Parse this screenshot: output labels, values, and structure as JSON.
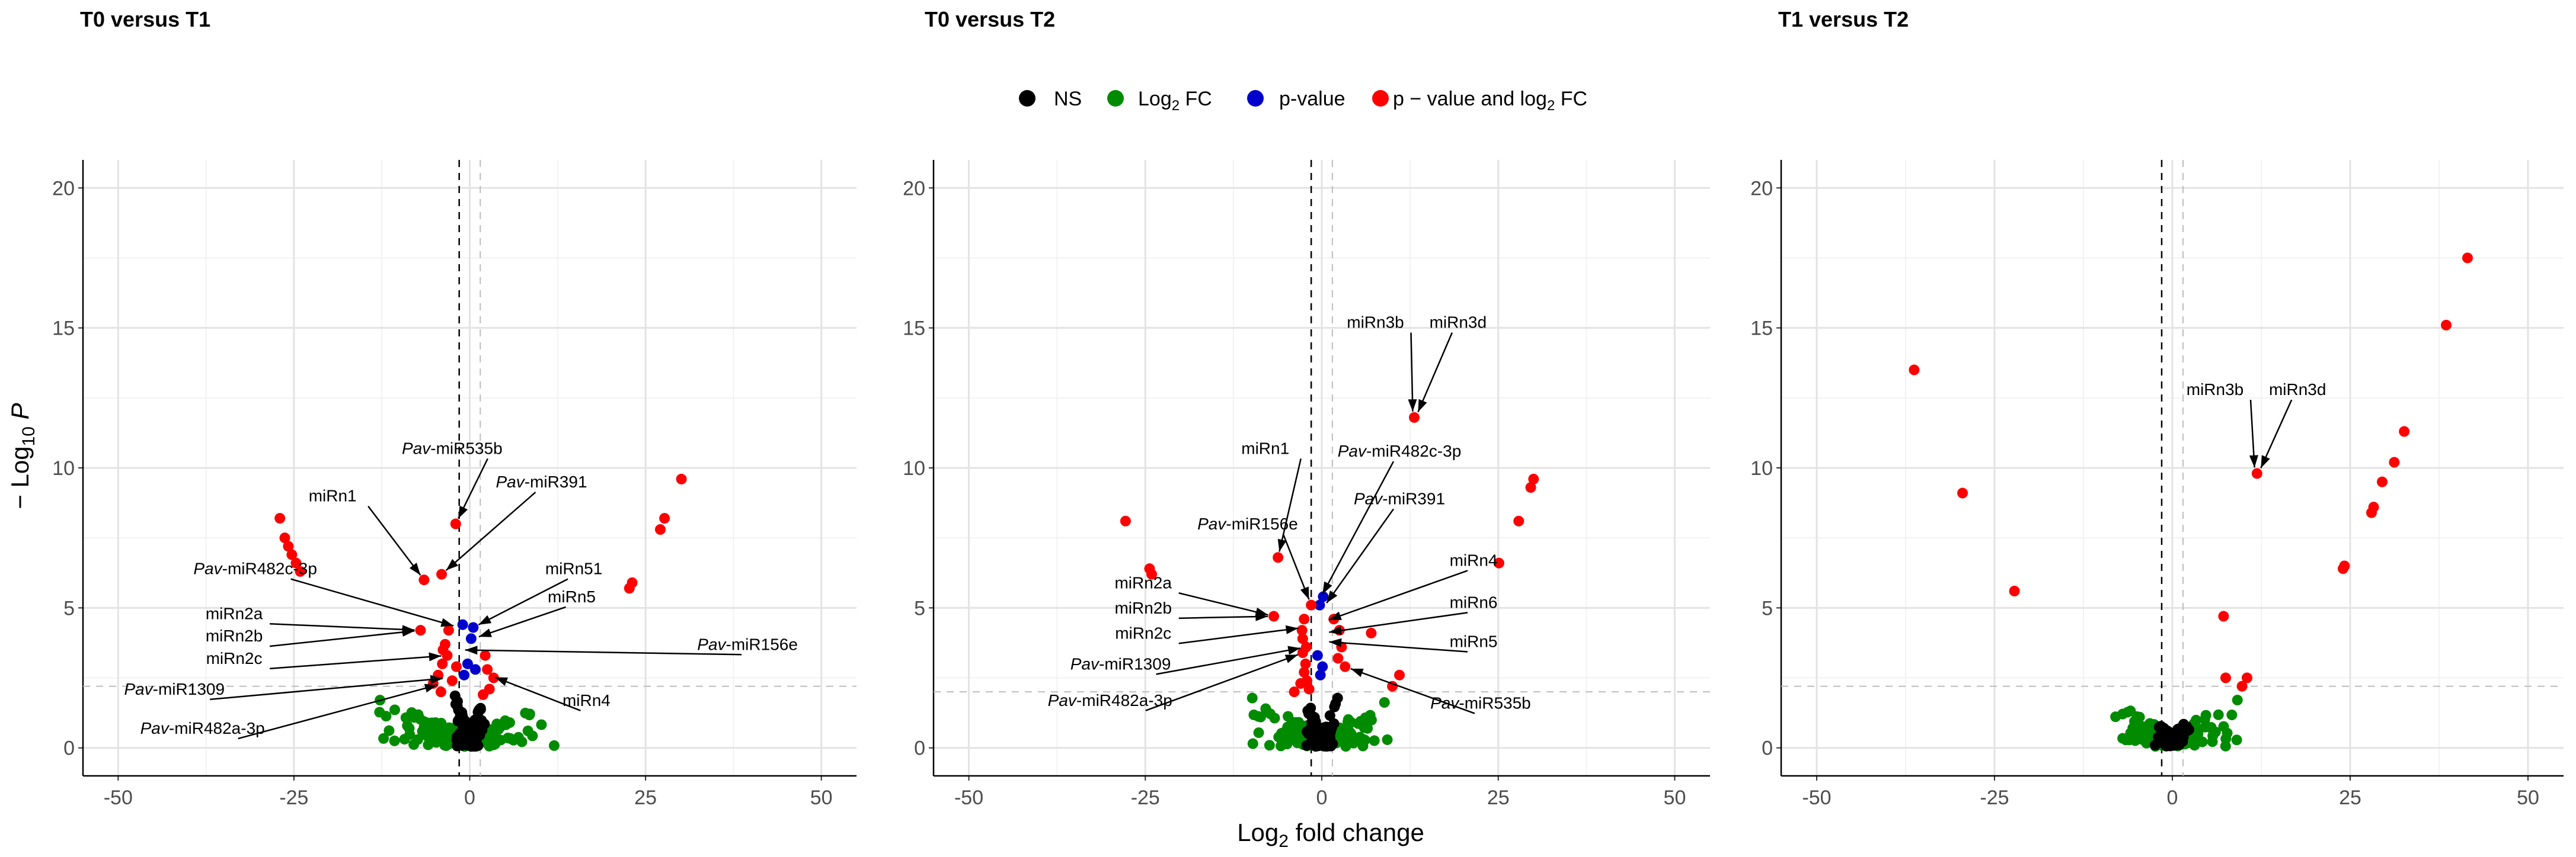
{
  "chart_data": [
    {
      "type": "scatter",
      "title": "T0 versus T1",
      "xlabel": "Log2 fold change",
      "ylabel": "-Log10 P",
      "xlim": [
        -55,
        55
      ],
      "ylim": [
        -1,
        21
      ],
      "xticks": [
        -50,
        -25,
        0,
        25,
        50
      ],
      "yticks": [
        0,
        5,
        10,
        15,
        20
      ],
      "fc_cutoff": [
        -1.5,
        1.5
      ],
      "p_cutoff": 2.2,
      "series": [
        {
          "name": "NS",
          "color": "#000000",
          "cloud": {
            "xSpread": 2.5,
            "yMax": 2.1,
            "n": 140,
            "seed": 11
          }
        },
        {
          "name": "Log2 FC",
          "color": "#008B00",
          "cloud": {
            "xSpread": 14,
            "yMax": 1.8,
            "n": 150,
            "seed": 12
          }
        },
        {
          "name": "p-value",
          "color": "#0000CD",
          "points": [
            [
              -1.0,
              4.4
            ],
            [
              0.5,
              4.3
            ],
            [
              0.2,
              3.9
            ],
            [
              -0.3,
              3.0
            ],
            [
              0.8,
              2.8
            ],
            [
              -0.8,
              2.6
            ]
          ]
        },
        {
          "name": "p - value and log2 FC",
          "color": "#FF0000",
          "points": [
            [
              -27,
              8.2
            ],
            [
              -26.3,
              7.5
            ],
            [
              -25.8,
              7.2
            ],
            [
              -25.3,
              6.9
            ],
            [
              -24.7,
              6.6
            ],
            [
              -24.1,
              6.3
            ],
            [
              30.1,
              9.6
            ],
            [
              27.7,
              8.2
            ],
            [
              27.1,
              7.8
            ],
            [
              23.1,
              5.9
            ],
            [
              22.7,
              5.7
            ],
            [
              -2,
              8.0
            ],
            [
              -4,
              6.2
            ],
            [
              -6.5,
              6.0
            ],
            [
              -7,
              4.2
            ],
            [
              -3,
              4.2
            ],
            [
              -3.5,
              3.7
            ],
            [
              -3.8,
              3.5
            ],
            [
              -3.2,
              3.3
            ],
            [
              -3.9,
              3.0
            ],
            [
              -4.5,
              2.6
            ],
            [
              -5.2,
              2.3
            ],
            [
              -4.1,
              2.0
            ],
            [
              2.2,
              3.3
            ],
            [
              2.5,
              2.8
            ],
            [
              3.4,
              2.5
            ],
            [
              2.8,
              2.1
            ],
            [
              1.9,
              1.9
            ],
            [
              -2.5,
              2.4
            ],
            [
              -1.9,
              2.9
            ]
          ]
        }
      ],
      "annotations": [
        {
          "prefix": "Pav",
          "text": "-miR535b",
          "x": -2.5,
          "y": 10.5,
          "px": -2.0,
          "py": 8.0
        },
        {
          "prefix": "Pav",
          "text": "-miR391",
          "x": 10.2,
          "y": 9.3,
          "px": -4.0,
          "py": 6.2
        },
        {
          "prefix": "",
          "text": "miRn1",
          "x": -19.5,
          "y": 8.8,
          "px": -6.5,
          "py": 6.0
        },
        {
          "prefix": "Pav",
          "text": "-miR482c-3p",
          "x": -30.5,
          "y": 6.2,
          "px": -1.5,
          "py": 4.3
        },
        {
          "prefix": "",
          "text": "miRn51",
          "x": 14.8,
          "y": 6.2,
          "px": 0.5,
          "py": 4.3
        },
        {
          "prefix": "",
          "text": "miRn5",
          "x": 14.5,
          "y": 5.2,
          "px": 0.5,
          "py": 3.9
        },
        {
          "prefix": "",
          "text": "miRn2a",
          "x": -33.5,
          "y": 4.6,
          "px": -7.0,
          "py": 4.2
        },
        {
          "prefix": "",
          "text": "miRn2b",
          "x": -33.5,
          "y": 3.8,
          "px": -7.0,
          "py": 4.2
        },
        {
          "prefix": "",
          "text": "miRn2c",
          "x": -33.5,
          "y": 3.0,
          "px": -3.2,
          "py": 3.3
        },
        {
          "prefix": "",
          "text": "miRn4",
          "x": 16.6,
          "y": 1.5,
          "px": 2.8,
          "py": 2.6
        },
        {
          "prefix": "Pav",
          "text": "-miR156e",
          "x": 39.5,
          "y": 3.5,
          "px": -1.5,
          "py": 3.5
        },
        {
          "prefix": "Pav",
          "text": "-miR1309",
          "x": -42,
          "y": 1.9,
          "px": -3.0,
          "py": 2.5
        },
        {
          "prefix": "Pav",
          "text": "-miR482a-3p",
          "x": -38,
          "y": 0.5,
          "px": -3.8,
          "py": 2.3
        }
      ]
    },
    {
      "type": "scatter",
      "title": "T0 versus T2",
      "xlabel": "Log2 fold change",
      "ylabel": "-Log10 P",
      "xlim": [
        -55,
        55
      ],
      "ylim": [
        -1,
        21
      ],
      "xticks": [
        -50,
        -25,
        0,
        25,
        50
      ],
      "yticks": [
        0,
        5,
        10,
        15,
        20
      ],
      "fc_cutoff": [
        -1.5,
        1.5
      ],
      "p_cutoff": 2.0,
      "series": [
        {
          "name": "NS",
          "color": "#000000",
          "cloud": {
            "xSpread": 2.5,
            "yMax": 1.9,
            "n": 140,
            "seed": 21
          }
        },
        {
          "name": "Log2 FC",
          "color": "#008B00",
          "cloud": {
            "xSpread": 11,
            "yMax": 1.9,
            "n": 150,
            "seed": 22
          }
        },
        {
          "name": "p-value",
          "color": "#0000CD",
          "points": [
            [
              0.2,
              5.4
            ],
            [
              -0.3,
              5.1
            ],
            [
              -0.6,
              3.3
            ],
            [
              0.1,
              2.9
            ],
            [
              -0.2,
              2.6
            ]
          ]
        },
        {
          "name": "p - value and log2 FC",
          "color": "#FF0000",
          "points": [
            [
              -27.8,
              8.1
            ],
            [
              -24.4,
              6.4
            ],
            [
              -24.1,
              6.2
            ],
            [
              13.1,
              11.8
            ],
            [
              30,
              9.6
            ],
            [
              29.6,
              9.3
            ],
            [
              27.9,
              8.1
            ],
            [
              25.1,
              6.6
            ],
            [
              -6.2,
              6.8
            ],
            [
              -1.5,
              5.1
            ],
            [
              -6.8,
              4.7
            ],
            [
              -2.5,
              4.6
            ],
            [
              -2.8,
              4.2
            ],
            [
              -2.7,
              3.9
            ],
            [
              -2.2,
              3.6
            ],
            [
              -2.7,
              3.4
            ],
            [
              -2.3,
              3.0
            ],
            [
              -2.5,
              2.7
            ],
            [
              -3.0,
              2.3
            ],
            [
              -3.9,
              2.0
            ],
            [
              1.7,
              4.6
            ],
            [
              2.5,
              4.2
            ],
            [
              2.8,
              3.6
            ],
            [
              7.0,
              4.1
            ],
            [
              2.3,
              3.2
            ],
            [
              3.3,
              2.9
            ],
            [
              11,
              2.6
            ],
            [
              10,
              2.2
            ],
            [
              -1.8,
              2.1
            ],
            [
              -2.1,
              2.4
            ]
          ]
        }
      ],
      "annotations": [
        {
          "prefix": "",
          "text": "miRn3b",
          "x": 7.6,
          "y": 15.0,
          "px": 12.9,
          "py": 11.8
        },
        {
          "prefix": "",
          "text": "miRn3d",
          "x": 19.3,
          "y": 15.0,
          "px": 13.3,
          "py": 11.8
        },
        {
          "prefix": "",
          "text": "miRn1",
          "x": -8.0,
          "y": 10.5,
          "px": -6.2,
          "py": 6.8
        },
        {
          "prefix": "Pav",
          "text": "-miR482c-3p",
          "x": 11.0,
          "y": 10.4,
          "px": -0.3,
          "py": 5.3
        },
        {
          "prefix": "Pav",
          "text": "-miR391",
          "x": 11.0,
          "y": 8.7,
          "px": 0.2,
          "py": 5.0
        },
        {
          "prefix": "Pav",
          "text": "-miR156e",
          "x": -10.5,
          "y": 7.8,
          "px": -1.5,
          "py": 5.1
        },
        {
          "prefix": "",
          "text": "miRn4",
          "x": 21.5,
          "y": 6.5,
          "px": 0.2,
          "py": 4.5
        },
        {
          "prefix": "",
          "text": "miRn2a",
          "x": -25.3,
          "y": 5.7,
          "px": -6.8,
          "py": 4.7
        },
        {
          "prefix": "",
          "text": "miRn2b",
          "x": -25.3,
          "y": 4.8,
          "px": -6.8,
          "py": 4.7
        },
        {
          "prefix": "",
          "text": "miRn6",
          "x": 21.5,
          "y": 5.0,
          "px": 0.2,
          "py": 4.1
        },
        {
          "prefix": "",
          "text": "miRn2c",
          "x": -25.3,
          "y": 3.9,
          "px": -2.5,
          "py": 4.3
        },
        {
          "prefix": "",
          "text": "miRn5",
          "x": 21.5,
          "y": 3.6,
          "px": 0.2,
          "py": 3.8
        },
        {
          "prefix": "Pav",
          "text": "-miR1309",
          "x": -28.5,
          "y": 2.8,
          "px": -2.2,
          "py": 3.6
        },
        {
          "prefix": "Pav",
          "text": "-miR482a-3p",
          "x": -30.0,
          "y": 1.5,
          "px": -2.6,
          "py": 3.4
        },
        {
          "prefix": "Pav",
          "text": "-miR535b",
          "x": 22.5,
          "y": 1.4,
          "px": 3.3,
          "py": 2.9
        }
      ]
    },
    {
      "type": "scatter",
      "title": "T1 versus T2",
      "xlabel": "Log2 fold change",
      "ylabel": "-Log10 P",
      "xlim": [
        -55,
        55
      ],
      "ylim": [
        -1,
        21
      ],
      "xticks": [
        -50,
        -25,
        0,
        25,
        50
      ],
      "yticks": [
        0,
        5,
        10,
        15,
        20
      ],
      "fc_cutoff": [
        -1.5,
        1.5
      ],
      "p_cutoff": 2.2,
      "series": [
        {
          "name": "NS",
          "color": "#000000",
          "cloud": {
            "xSpread": 2.5,
            "yMax": 1.3,
            "n": 120,
            "seed": 31
          }
        },
        {
          "name": "Log2 FC",
          "color": "#008B00",
          "cloud": {
            "xSpread": 10,
            "yMax": 1.9,
            "n": 130,
            "seed": 32
          }
        },
        {
          "name": "p-value",
          "color": "#0000CD",
          "points": []
        },
        {
          "name": "p - value and log2 FC",
          "color": "#FF0000",
          "points": [
            [
              -36.3,
              13.5
            ],
            [
              -29.5,
              9.1
            ],
            [
              -22.2,
              5.6
            ],
            [
              41.5,
              17.5
            ],
            [
              38.5,
              15.1
            ],
            [
              32.6,
              11.3
            ],
            [
              31.2,
              10.2
            ],
            [
              29.5,
              9.5
            ],
            [
              28.3,
              8.6
            ],
            [
              28,
              8.4
            ],
            [
              24.2,
              6.5
            ],
            [
              24,
              6.4
            ],
            [
              7.2,
              4.7
            ],
            [
              11.9,
              9.8
            ],
            [
              10.5,
              2.5
            ],
            [
              9.8,
              2.2
            ],
            [
              7.5,
              2.5
            ]
          ]
        }
      ],
      "annotations": [
        {
          "prefix": "",
          "text": "miRn3b",
          "x": 6.0,
          "y": 12.6,
          "px": 11.6,
          "py": 9.8
        },
        {
          "prefix": "",
          "text": "miRn3d",
          "x": 17.6,
          "y": 12.6,
          "px": 12.1,
          "py": 9.8
        }
      ]
    }
  ],
  "legend": [
    {
      "label": "NS",
      "color": "#000000"
    },
    {
      "label": "Log2 FC",
      "color": "#008B00"
    },
    {
      "label": "p-value",
      "color": "#0000CD"
    },
    {
      "label": "p − value and log2 FC",
      "color": "#FF0000"
    }
  ],
  "axis_titles": {
    "x": "Log2 fold change",
    "y": "− Log10 P"
  }
}
